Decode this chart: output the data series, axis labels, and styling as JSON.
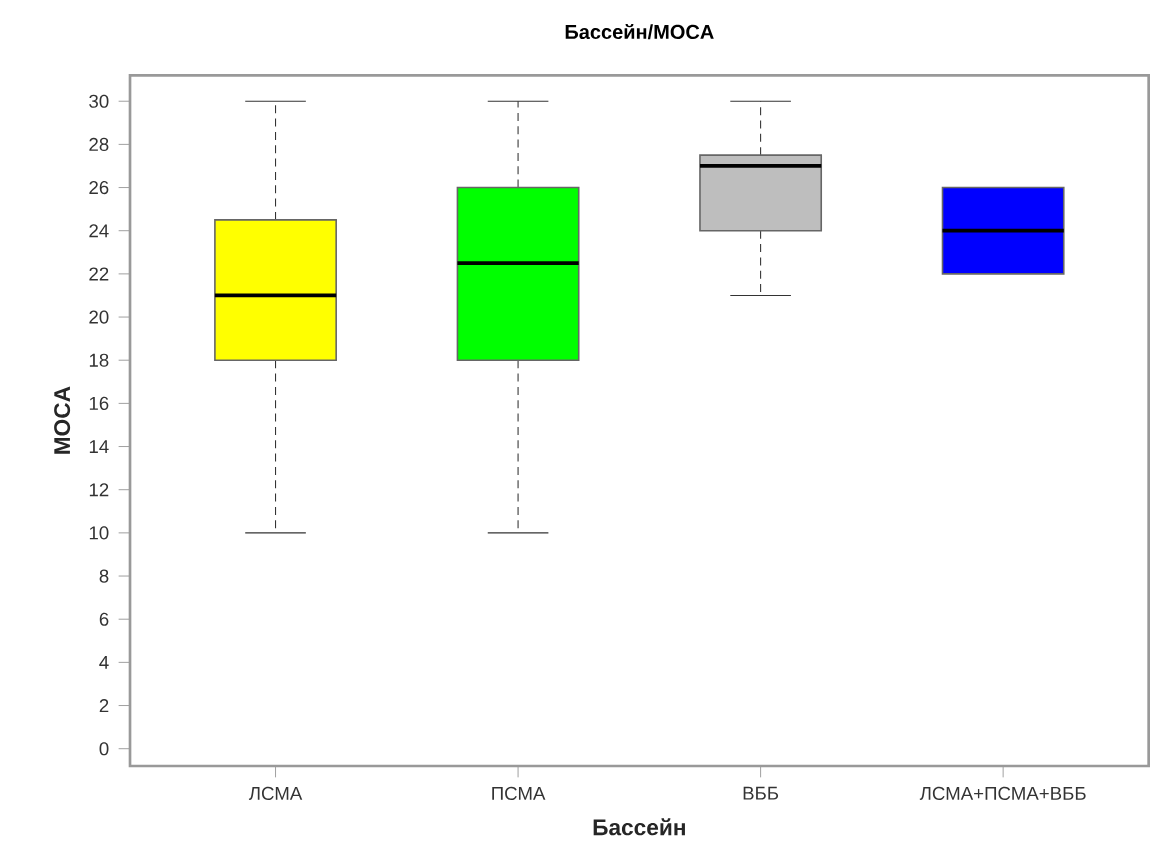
{
  "chart_data": {
    "type": "box",
    "title": "Бассейн/MOCA",
    "xlabel": "Бассейн",
    "ylabel": "MOCA",
    "categories": [
      "ЛСМА",
      "ПСМА",
      "ВББ",
      "ЛСМА+ПСМА+ВББ"
    ],
    "colors": [
      "#ffff00",
      "#00ff00",
      "#bebebe",
      "#0000ff"
    ],
    "boxes": [
      {
        "low": 10,
        "q1": 18,
        "median": 21,
        "q3": 24.5,
        "high": 30
      },
      {
        "low": 10,
        "q1": 18,
        "median": 22.5,
        "q3": 26,
        "high": 30
      },
      {
        "low": 21,
        "q1": 24,
        "median": 27,
        "q3": 27.5,
        "high": 30
      },
      {
        "low": 22,
        "q1": 22,
        "median": 24,
        "q3": 26,
        "high": 26
      }
    ],
    "ylim": [
      -0.8,
      31.2
    ],
    "yticks": [
      0,
      2,
      4,
      6,
      8,
      10,
      12,
      14,
      16,
      18,
      20,
      22,
      24,
      26,
      28,
      30
    ]
  }
}
